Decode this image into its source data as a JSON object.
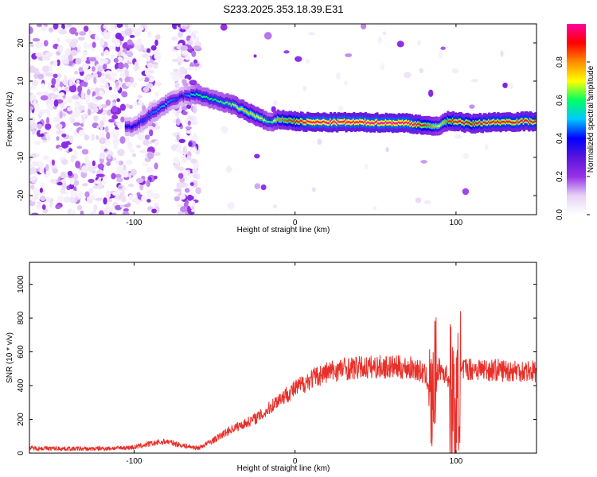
{
  "title": "S233.2025.353.18.39.E31",
  "chart_data": [
    {
      "type": "heatmap",
      "xlabel": "Height of straight line (km)",
      "ylabel": "Frequency (Hz)",
      "xlim": [
        -165,
        150
      ],
      "ylim": [
        -25,
        25
      ],
      "xticks": [
        -100,
        0,
        100
      ],
      "yticks": [
        -20,
        -10,
        0,
        10,
        20
      ],
      "colorbar": {
        "label": "Normalized spectral amplitude",
        "range": [
          0,
          1
        ],
        "ticks": [
          0.0,
          0.2,
          0.4,
          0.6,
          0.8
        ],
        "colors": [
          "#ffffff",
          "#e6d2f5",
          "#9632e6",
          "#5a14dc",
          "#0000ff",
          "#00c8ff",
          "#00ff64",
          "#ffff00",
          "#ff8c00",
          "#ff0000",
          "#ff00a0"
        ]
      },
      "ridge": {
        "x": [
          -100,
          -90,
          -80,
          -70,
          -60,
          -50,
          -40,
          -30,
          -20,
          -15,
          -10,
          0,
          10,
          40,
          70,
          80,
          85,
          90,
          95,
          100,
          110,
          120,
          150
        ],
        "freq": [
          -2,
          1,
          4,
          6,
          6.5,
          5,
          4,
          2,
          0,
          -1,
          0,
          -0.5,
          -0.8,
          -0.8,
          -1,
          -1.5,
          -2,
          -1.5,
          -0.5,
          -0.5,
          -1.2,
          -0.8,
          -0.5
        ],
        "amp": [
          0.4,
          0.45,
          0.5,
          0.4,
          0.6,
          0.6,
          0.65,
          0.75,
          0.7,
          0.6,
          0.8,
          0.9,
          1.0,
          1.0,
          1.0,
          0.9,
          0.8,
          0.7,
          0.85,
          0.95,
          0.9,
          0.95,
          0.95
        ]
      }
    },
    {
      "type": "line",
      "xlabel": "Height of straight line (km)",
      "ylabel": "SNR (10 * v/v)",
      "xlim": [
        -165,
        150
      ],
      "ylim": [
        0,
        1130
      ],
      "xticks": [
        -100,
        0,
        100
      ],
      "yticks": [
        0,
        200,
        400,
        600,
        800,
        1000
      ],
      "color": "#e8302a",
      "series": [
        {
          "name": "SNR",
          "x": [
            -165,
            -130,
            -110,
            -100,
            -90,
            -80,
            -70,
            -60,
            -50,
            -40,
            -30,
            -20,
            -10,
            0,
            10,
            20,
            30,
            40,
            50,
            60,
            70,
            75,
            80,
            83,
            85,
            87,
            90,
            95,
            98,
            100,
            102,
            105,
            110,
            120,
            130,
            140,
            150
          ],
          "y": [
            30,
            25,
            30,
            35,
            55,
            70,
            45,
            30,
            80,
            140,
            180,
            230,
            320,
            380,
            440,
            480,
            500,
            505,
            510,
            510,
            505,
            500,
            470,
            420,
            250,
            480,
            500,
            450,
            300,
            150,
            450,
            500,
            500,
            495,
            490,
            490,
            485
          ]
        }
      ]
    }
  ]
}
